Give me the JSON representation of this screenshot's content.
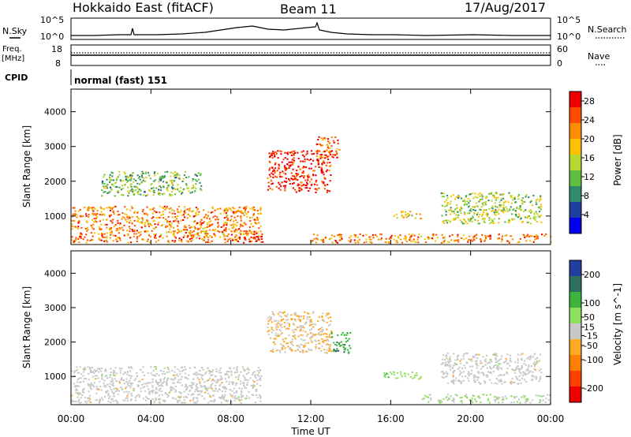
{
  "header": {
    "title": "Hokkaido East (fitACF)",
    "beam": "Beam 11",
    "date": "17/Aug/2017"
  },
  "status_panel": {
    "nsky_label": "N.Sky",
    "nsearch_label": "N.Search",
    "noise_ticks": [
      "10^5",
      "10^0"
    ],
    "freq_label": "Freq.",
    "freq_unit": "[MHz]",
    "freq_ticks": [
      "18",
      "8"
    ],
    "nave_label": "Nave",
    "nave_ticks": [
      "60",
      "0"
    ],
    "cpid_label": "CPID",
    "cpid_value": "normal (fast) 151"
  },
  "colors": {
    "power": [
      "#0000ee",
      "#1f3f9f",
      "#2e8b6b",
      "#5fbf3f",
      "#b8d830",
      "#ffc000",
      "#ff8c00",
      "#ff4d00",
      "#ee0000"
    ],
    "velocity": [
      "#ee0000",
      "#ff4000",
      "#ff8000",
      "#ffaa22",
      "#c8c8c8",
      "#90e060",
      "#3cb43c",
      "#2f6f5f",
      "#203f9f"
    ]
  },
  "chart_data": [
    {
      "type": "heatmap",
      "name": "power",
      "x": [
        "00:00",
        "04:00",
        "08:00",
        "12:00",
        "16:00",
        "20:00",
        "00:00"
      ],
      "xlim_hours": [
        0,
        24
      ],
      "ylabel": "Slant Range [km]",
      "y_ticks": [
        1000,
        2000,
        3000,
        4000
      ],
      "ylim": [
        180,
        4650
      ],
      "colorbar_label": "Power [dB]",
      "colorbar_ticks": [
        4,
        8,
        12,
        16,
        20,
        24,
        28
      ],
      "colorbar_range": [
        0,
        30
      ],
      "echo_regions": [
        {
          "t": [
            0,
            9.5
          ],
          "r": [
            250,
            1300
          ],
          "db": 22
        },
        {
          "t": [
            8.5,
            9.6
          ],
          "r": [
            250,
            500
          ],
          "db": 30
        },
        {
          "t": [
            9.8,
            13
          ],
          "r": [
            1700,
            2900
          ],
          "db": 28
        },
        {
          "t": [
            12.2,
            13.4
          ],
          "r": [
            2700,
            3300
          ],
          "db": 24
        },
        {
          "t": [
            12,
            24
          ],
          "r": [
            250,
            500
          ],
          "db": 22
        },
        {
          "t": [
            16,
            17.5
          ],
          "r": [
            950,
            1150
          ],
          "db": 18
        },
        {
          "t": [
            18.5,
            23.5
          ],
          "r": [
            800,
            1700
          ],
          "db": 14
        },
        {
          "t": [
            1.5,
            6.5
          ],
          "r": [
            1600,
            2300
          ],
          "db": 12
        }
      ]
    },
    {
      "type": "heatmap",
      "name": "velocity",
      "x": [
        "00:00",
        "04:00",
        "08:00",
        "12:00",
        "16:00",
        "20:00",
        "00:00"
      ],
      "xlim_hours": [
        0,
        24
      ],
      "xlabel": "Time UT",
      "ylabel": "Slant Range [km]",
      "y_ticks": [
        1000,
        2000,
        3000,
        4000
      ],
      "ylim": [
        180,
        4650
      ],
      "colorbar_label": "Velocity [m s^-1]",
      "colorbar_ticks": [
        200,
        100,
        50,
        15,
        -15,
        -50,
        -100,
        -200
      ],
      "colorbar_range": [
        -250,
        250
      ],
      "echo_regions": [
        {
          "t": [
            0,
            9.5
          ],
          "r": [
            250,
            1300
          ],
          "v": 0
        },
        {
          "t": [
            9.8,
            13
          ],
          "r": [
            1700,
            2900
          ],
          "v": -30
        },
        {
          "t": [
            13,
            14
          ],
          "r": [
            1700,
            2300
          ],
          "v": 120
        },
        {
          "t": [
            15.5,
            17.5
          ],
          "r": [
            950,
            1150
          ],
          "v": 60
        },
        {
          "t": [
            17.5,
            24
          ],
          "r": [
            250,
            500
          ],
          "v": 30
        },
        {
          "t": [
            18.5,
            23.5
          ],
          "r": [
            800,
            1700
          ],
          "v": 0
        }
      ]
    }
  ]
}
